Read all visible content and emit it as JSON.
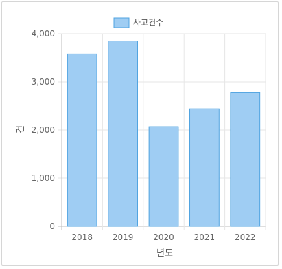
{
  "chart_data": {
    "type": "bar",
    "categories": [
      "2018",
      "2019",
      "2020",
      "2021",
      "2022"
    ],
    "series": [
      {
        "name": "사고건수",
        "values": [
          3580,
          3850,
          2070,
          2440,
          2780
        ]
      }
    ],
    "xlabel": "년도",
    "ylabel": "건",
    "ylim": [
      0,
      4000
    ],
    "yticks": [
      0,
      1000,
      2000,
      3000,
      4000
    ],
    "ytick_labels": [
      "0",
      "1,000",
      "2,000",
      "3,000",
      "4,000"
    ],
    "grid": true,
    "legend": "top",
    "colors": {
      "bar_fill": "#9fcdf3",
      "bar_stroke": "#4fa3e0",
      "grid": "#e6e6e6",
      "axis": "#bdbdbd"
    }
  }
}
